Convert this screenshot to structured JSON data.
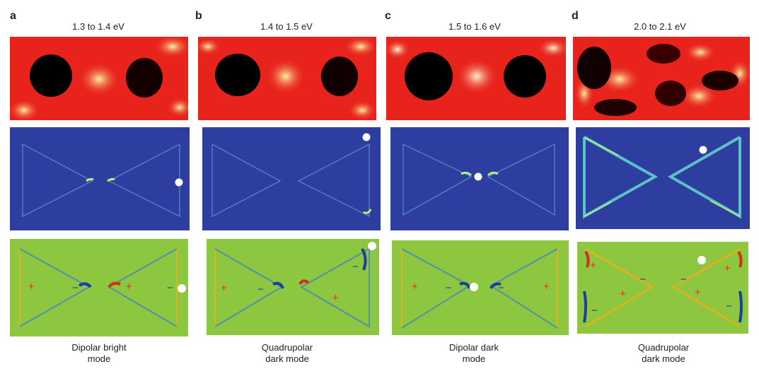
{
  "panels": [
    {
      "letter": "a",
      "energy": "1.3 to 1.4 eV",
      "caption_line1": "Dipolar bright",
      "caption_line2": "mode"
    },
    {
      "letter": "b",
      "energy": "1.4 to 1.5 eV",
      "caption_line1": "Quadrupolar",
      "caption_line2": "dark mode"
    },
    {
      "letter": "c",
      "energy": "1.5 to 1.6 eV",
      "caption_line1": "Dipolar dark",
      "caption_line2": "mode"
    },
    {
      "letter": "d",
      "energy": "2.0 to 2.1 eV",
      "caption_line1": "Quadrupolar",
      "caption_line2": "dark mode"
    }
  ],
  "signs": {
    "plus": "+",
    "minus": "−"
  },
  "colors": {
    "eels_hot": "#e8231c",
    "eels_glow": "#f7e86a",
    "field_blue": "#2e3ea0",
    "field_edge": "#5fd1c8",
    "charge_green": "#8dc63f"
  }
}
